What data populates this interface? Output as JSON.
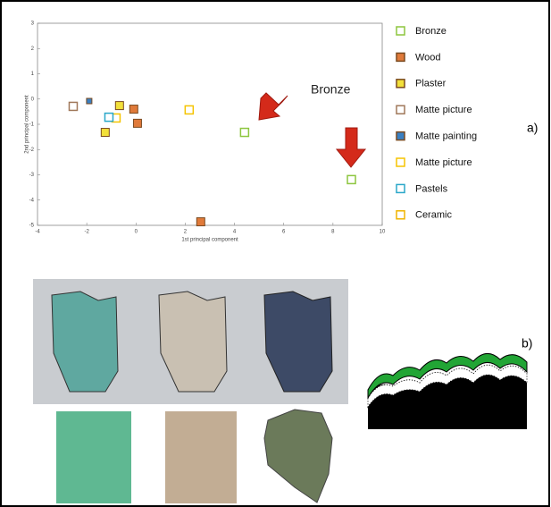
{
  "chart_data": {
    "type": "scatter",
    "xlabel": "1st principal component",
    "ylabel": "2nd principal component",
    "annotation": "Bronze",
    "panel_labels": [
      "a)",
      "b)"
    ],
    "xlim": [
      -4,
      10
    ],
    "xticks": [
      -4,
      -2,
      0,
      2,
      4,
      6,
      8,
      10
    ],
    "ylim": [
      -5,
      3
    ],
    "yticks": [
      -5,
      -4,
      -3,
      -2,
      -1,
      0,
      1,
      2,
      3
    ],
    "series": [
      {
        "name": "Bronze",
        "color": "#8dc63f",
        "filled": false,
        "x": [
          4.41,
          8.75
        ],
        "values": [
          -1.32,
          -3.19
        ]
      },
      {
        "name": "Wood",
        "color": "#e07a3a",
        "filled": true,
        "x": [
          -0.09,
          0.06,
          2.63
        ],
        "values": [
          -0.4,
          -0.96,
          -4.86
        ]
      },
      {
        "name": "Plaster",
        "color": "#f2e03a",
        "filled": true,
        "x": [
          -0.67,
          -1.25
        ],
        "values": [
          -0.26,
          -1.32
        ]
      },
      {
        "name": "Matte picture",
        "color": "#a0785a",
        "filled": false,
        "x": [
          -2.55
        ],
        "values": [
          -0.29
        ]
      },
      {
        "name": "Matte painting",
        "color": "#3a7fc1",
        "filled": true,
        "x": [
          -1.9
        ],
        "values": [
          -0.08
        ]
      },
      {
        "name": "Matte picture",
        "color": "#f5c400",
        "filled": false,
        "x": [
          -0.81,
          2.16
        ],
        "values": [
          -0.75,
          -0.43
        ]
      },
      {
        "name": "Pastels",
        "color": "#2aa7c9",
        "filled": false,
        "x": [
          -1.1
        ],
        "values": [
          -0.72
        ]
      },
      {
        "name": "Ceramic",
        "color": "#f0b400",
        "filled": false,
        "x": [],
        "values": []
      }
    ]
  }
}
